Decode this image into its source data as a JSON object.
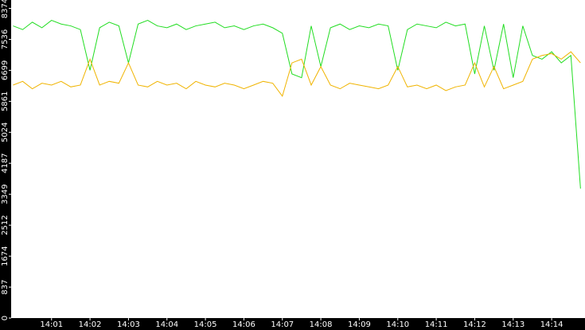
{
  "chart_data": {
    "type": "line",
    "x": [
      50400,
      50415,
      50430,
      50445,
      50460,
      50475,
      50490,
      50505,
      50520,
      50535,
      50550,
      50565,
      50580,
      50595,
      50610,
      50625,
      50640,
      50655,
      50670,
      50685,
      50700,
      50715,
      50730,
      50745,
      50760,
      50775,
      50790,
      50805,
      50820,
      50835,
      50850,
      50865,
      50880,
      50895,
      50910,
      50925,
      50940,
      50955,
      50970,
      50985,
      51000,
      51015,
      51030,
      51045,
      51060,
      51075,
      51090,
      51105,
      51120,
      51135,
      51150,
      51165,
      51180,
      51195,
      51210,
      51225,
      51240,
      51255,
      51270,
      51285
    ],
    "series": [
      {
        "color": "#22dd22",
        "values": [
          7900,
          7800,
          8000,
          7850,
          8050,
          7950,
          7900,
          7800,
          6700,
          7850,
          8000,
          7900,
          6900,
          7950,
          8050,
          7900,
          7850,
          7950,
          7800,
          7900,
          7950,
          8000,
          7850,
          7900,
          7800,
          7900,
          7950,
          7850,
          7700,
          6600,
          6500,
          7900,
          6800,
          7850,
          7950,
          7800,
          7900,
          7850,
          7950,
          7900,
          6700,
          7800,
          7950,
          7900,
          7850,
          8000,
          7900,
          7950,
          6600,
          7900,
          6700,
          7950,
          6500,
          7900,
          7100,
          7000,
          7200,
          6900,
          7100,
          3500
        ]
      },
      {
        "color": "#f0b400",
        "values": [
          6300,
          6400,
          6200,
          6350,
          6300,
          6400,
          6250,
          6300,
          7000,
          6300,
          6400,
          6350,
          6900,
          6300,
          6250,
          6400,
          6300,
          6350,
          6200,
          6400,
          6300,
          6250,
          6350,
          6300,
          6200,
          6300,
          6400,
          6350,
          6000,
          6900,
          7000,
          6300,
          6800,
          6300,
          6200,
          6350,
          6300,
          6250,
          6200,
          6300,
          6800,
          6250,
          6300,
          6200,
          6300,
          6150,
          6250,
          6300,
          6900,
          6250,
          6800,
          6200,
          6300,
          6400,
          7000,
          7100,
          7150,
          7000,
          7200,
          6900
        ]
      }
    ],
    "xlim": [
      50397,
      51292
    ],
    "xticks": [
      {
        "value": 50460,
        "label": "14:01"
      },
      {
        "value": 50520,
        "label": "14:02"
      },
      {
        "value": 50580,
        "label": "14:03"
      },
      {
        "value": 50640,
        "label": "14:04"
      },
      {
        "value": 50700,
        "label": "14:05"
      },
      {
        "value": 50760,
        "label": "14:06"
      },
      {
        "value": 50820,
        "label": "14:07"
      },
      {
        "value": 50880,
        "label": "14:08"
      },
      {
        "value": 50940,
        "label": "14:09"
      },
      {
        "value": 51000,
        "label": "14:10"
      },
      {
        "value": 51060,
        "label": "14:11"
      },
      {
        "value": 51120,
        "label": "14:12"
      },
      {
        "value": 51180,
        "label": "14:13"
      },
      {
        "value": 51240,
        "label": "14:14"
      }
    ],
    "ylim": [
      0,
      8600
    ],
    "yticks": [
      0,
      837,
      1674,
      2512,
      3349,
      4187,
      5024,
      5861,
      6699,
      7536,
      8374
    ],
    "grid": false
  }
}
